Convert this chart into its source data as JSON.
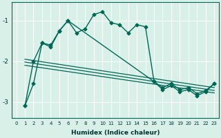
{
  "xlabel": "Humidex (Indice chaleur)",
  "background_color": "#d8f0e8",
  "line_color": "#006655",
  "grid_color": "#ffffff",
  "xlim": [
    -0.5,
    23.5
  ],
  "ylim": [
    -3.4,
    -0.55
  ],
  "yticks": [
    -3,
    -2,
    -1
  ],
  "xticks": [
    0,
    1,
    2,
    3,
    4,
    5,
    6,
    7,
    8,
    9,
    10,
    11,
    12,
    13,
    14,
    15,
    16,
    17,
    18,
    19,
    20,
    21,
    22,
    23
  ],
  "series": [
    {
      "x": [
        1,
        2,
        3,
        4,
        5,
        6,
        7,
        8,
        9,
        10,
        11,
        12,
        13,
        14,
        15,
        16,
        17,
        18,
        19,
        20,
        21,
        22,
        23
      ],
      "y": [
        -3.1,
        -2.55,
        -1.55,
        -1.6,
        -1.25,
        -1.0,
        -1.3,
        -1.2,
        -0.85,
        -0.78,
        -1.05,
        -1.1,
        -1.3,
        -1.1,
        -1.15,
        -2.5,
        -2.7,
        -2.6,
        -2.75,
        -2.7,
        -2.85,
        -2.75,
        -2.55
      ],
      "marker": "D",
      "markersize": 2.5,
      "linewidth": 1.0
    },
    {
      "x": [
        1,
        2,
        3,
        4,
        5,
        6,
        16,
        17,
        18,
        19,
        20,
        21,
        22,
        23
      ],
      "y": [
        -3.1,
        -2.0,
        -1.55,
        -1.65,
        -1.25,
        -1.0,
        -2.5,
        -2.65,
        -2.55,
        -2.7,
        -2.65,
        -2.8,
        -2.72,
        -2.55
      ],
      "marker": "D",
      "markersize": 2.5,
      "linewidth": 1.0
    },
    {
      "x": [
        1,
        23
      ],
      "y": [
        -1.95,
        -2.65
      ],
      "marker": null,
      "markersize": 0,
      "linewidth": 0.9
    },
    {
      "x": [
        1,
        23
      ],
      "y": [
        -2.1,
        -2.78
      ],
      "marker": null,
      "markersize": 0,
      "linewidth": 0.9
    },
    {
      "x": [
        1,
        23
      ],
      "y": [
        -2.02,
        -2.72
      ],
      "marker": null,
      "markersize": 0,
      "linewidth": 0.9
    }
  ]
}
